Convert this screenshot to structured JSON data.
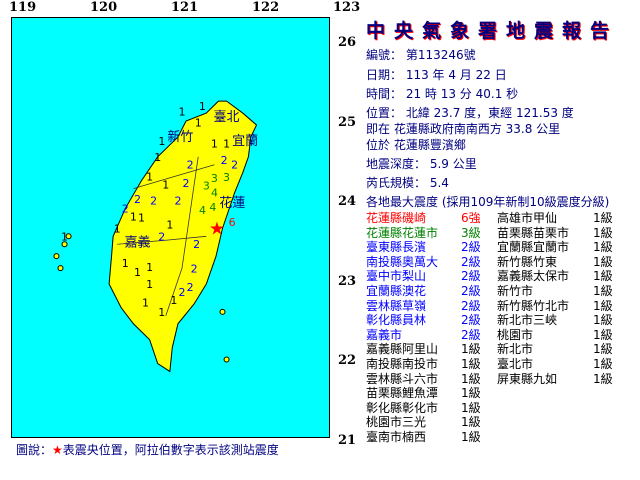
{
  "header": {
    "title": "中央氣象署地震報告"
  },
  "report": {
    "number": "編號： 第113246號",
    "date": "日期： 113 年 4 月 22 日",
    "time": "時間： 21 時 13 分 40.1 秒",
    "location": "位置： 北緯 23.7 度，東經 121.53 度",
    "relative": "即在 花蓮縣政府南南西方 33.8 公里",
    "region": "位於 花蓮縣豐濱鄉",
    "depth": "地震深度： 5.9 公里",
    "magnitude": "芮氏規模： 5.4",
    "intensity_header": "各地最大震度 (採用109年新制10級震度分級)"
  },
  "colors": {
    "sea": "#00ffff",
    "land": "#ffff00",
    "epicenter": "#ff0000",
    "title": "#000080",
    "grade6": "#ff0000",
    "grade3": "#008000",
    "grade2": "#0000ff",
    "grade1": "#000000"
  },
  "intensity_list": [
    {
      "place": "花蓮縣磯崎",
      "grade": "6強",
      "color": "#ff0000"
    },
    {
      "place": "花蓮縣花蓮市",
      "grade": "3級",
      "color": "#008000"
    },
    {
      "place": "臺東縣長濱",
      "grade": "2級",
      "color": "#0000ff"
    },
    {
      "place": "南投縣奧萬大",
      "grade": "2級",
      "color": "#0000ff"
    },
    {
      "place": "臺中市梨山",
      "grade": "2級",
      "color": "#0000ff"
    },
    {
      "place": "宜蘭縣澳花",
      "grade": "2級",
      "color": "#0000ff"
    },
    {
      "place": "雲林縣草嶺",
      "grade": "2級",
      "color": "#0000ff"
    },
    {
      "place": "彰化縣員林",
      "grade": "2級",
      "color": "#0000ff"
    },
    {
      "place": "嘉義市",
      "grade": "2級",
      "color": "#0000ff"
    },
    {
      "place": "嘉義縣阿里山",
      "grade": "1級",
      "color": "#000000"
    },
    {
      "place": "南投縣南投市",
      "grade": "1級",
      "color": "#000000"
    },
    {
      "place": "雲林縣斗六市",
      "grade": "1級",
      "color": "#000000"
    },
    {
      "place": "苗栗縣鯉魚潭",
      "grade": "1級",
      "color": "#000000"
    },
    {
      "place": "彰化縣彰化市",
      "grade": "1級",
      "color": "#000000"
    },
    {
      "place": "桃園市三光",
      "grade": "1級",
      "color": "#000000"
    },
    {
      "place": "臺南市楠西",
      "grade": "1級",
      "color": "#000000"
    },
    {
      "place": "高雄市甲仙",
      "grade": "1級",
      "color": "#000000"
    },
    {
      "place": "苗栗縣苗栗市",
      "grade": "1級",
      "color": "#000000"
    },
    {
      "place": "宜蘭縣宜蘭市",
      "grade": "1級",
      "color": "#000000"
    },
    {
      "place": "新竹縣竹東",
      "grade": "1級",
      "color": "#000000"
    },
    {
      "place": "嘉義縣太保市",
      "grade": "1級",
      "color": "#000000"
    },
    {
      "place": "新竹市",
      "grade": "1級",
      "color": "#000000"
    },
    {
      "place": "新竹縣竹北市",
      "grade": "1級",
      "color": "#000000"
    },
    {
      "place": "新北市三峽",
      "grade": "1級",
      "color": "#000000"
    },
    {
      "place": "桃園市",
      "grade": "1級",
      "color": "#000000"
    },
    {
      "place": "新北市",
      "grade": "1級",
      "color": "#000000"
    },
    {
      "place": "臺北市",
      "grade": "1級",
      "color": "#000000"
    },
    {
      "place": "屏東縣九如",
      "grade": "1級",
      "color": "#000000"
    }
  ],
  "map": {
    "lon_ticks": [
      "119",
      "120",
      "121",
      "122",
      "123"
    ],
    "lat_ticks": [
      "26",
      "25",
      "24",
      "23",
      "22",
      "21"
    ],
    "epicenter": {
      "lat": 23.7,
      "lon": 121.53
    },
    "city_labels": [
      {
        "text": "臺北",
        "lon": 121.55,
        "lat": 25.05
      },
      {
        "text": "新竹",
        "lon": 120.98,
        "lat": 24.8
      },
      {
        "text": "宜蘭",
        "lon": 121.78,
        "lat": 24.75
      },
      {
        "text": "花蓮",
        "lon": 121.62,
        "lat": 23.97
      },
      {
        "text": "嘉義",
        "lon": 120.45,
        "lat": 23.47
      }
    ],
    "stations": [
      {
        "v": "6",
        "lon": 121.52,
        "lat": 23.73,
        "c": "#ff0000"
      },
      {
        "v": "4",
        "lon": 121.48,
        "lat": 23.78,
        "c": "#008000"
      },
      {
        "v": "4",
        "lon": 121.45,
        "lat": 23.88,
        "c": "#008000"
      },
      {
        "v": "4",
        "lon": 121.5,
        "lat": 23.96,
        "c": "#008000"
      },
      {
        "v": "3",
        "lon": 121.4,
        "lat": 24.05,
        "c": "#008000"
      },
      {
        "v": "3",
        "lon": 121.4,
        "lat": 24.28,
        "c": "#008000"
      },
      {
        "v": "3",
        "lon": 121.55,
        "lat": 24.02,
        "c": "#008000"
      },
      {
        "v": "2",
        "lon": 121.52,
        "lat": 24.23,
        "c": "#0000ff"
      },
      {
        "v": "2",
        "lon": 121.65,
        "lat": 24.45,
        "c": "#0000ff"
      },
      {
        "v": "2",
        "lon": 121.1,
        "lat": 24.45,
        "c": "#0000ff"
      },
      {
        "v": "2",
        "lon": 121.05,
        "lat": 24.22,
        "c": "#0000ff"
      },
      {
        "v": "2",
        "lon": 120.95,
        "lat": 24.0,
        "c": "#0000ff"
      },
      {
        "v": "2",
        "lon": 120.65,
        "lat": 24.0,
        "c": "#0000ff"
      },
      {
        "v": "2",
        "lon": 120.45,
        "lat": 24.02,
        "c": "#0000ff"
      },
      {
        "v": "2",
        "lon": 120.75,
        "lat": 23.55,
        "c": "#0000ff"
      },
      {
        "v": "2",
        "lon": 121.18,
        "lat": 23.45,
        "c": "#0000ff"
      },
      {
        "v": "2",
        "lon": 121.15,
        "lat": 23.28,
        "c": "#0000ff"
      },
      {
        "v": "2",
        "lon": 120.3,
        "lat": 23.9,
        "c": "#0000ff"
      },
      {
        "v": "1",
        "lon": 121.2,
        "lat": 24.98,
        "c": "#000000"
      },
      {
        "v": "1",
        "lon": 121.35,
        "lat": 25.05,
        "c": "#000000"
      },
      {
        "v": "1",
        "lon": 121.0,
        "lat": 24.98,
        "c": "#000000"
      },
      {
        "v": "1",
        "lon": 120.85,
        "lat": 24.75,
        "c": "#000000"
      },
      {
        "v": "1",
        "lon": 120.7,
        "lat": 24.55,
        "c": "#000000"
      },
      {
        "v": "1",
        "lon": 121.4,
        "lat": 24.72,
        "c": "#000000"
      },
      {
        "v": "1",
        "lon": 121.65,
        "lat": 24.72,
        "c": "#000000"
      },
      {
        "v": "1",
        "lon": 120.6,
        "lat": 24.3,
        "c": "#000000"
      },
      {
        "v": "1",
        "lon": 120.8,
        "lat": 24.2,
        "c": "#000000"
      },
      {
        "v": "1",
        "lon": 120.4,
        "lat": 23.8,
        "c": "#000000"
      },
      {
        "v": "1",
        "lon": 120.3,
        "lat": 23.65,
        "c": "#000000"
      },
      {
        "v": "1",
        "lon": 120.5,
        "lat": 23.65,
        "c": "#000000"
      },
      {
        "v": "1",
        "lon": 120.85,
        "lat": 23.7,
        "c": "#000000"
      },
      {
        "v": "1",
        "lon": 120.3,
        "lat": 23.35,
        "c": "#000000"
      },
      {
        "v": "1",
        "lon": 120.6,
        "lat": 23.3,
        "c": "#000000"
      },
      {
        "v": "1",
        "lon": 120.45,
        "lat": 23.1,
        "c": "#000000"
      },
      {
        "v": "1",
        "lon": 120.6,
        "lat": 22.95,
        "c": "#000000"
      },
      {
        "v": "1",
        "lon": 120.55,
        "lat": 22.72,
        "c": "#000000"
      },
      {
        "v": "1",
        "lon": 120.75,
        "lat": 22.6,
        "c": "#000000"
      },
      {
        "v": "1",
        "lon": 120.9,
        "lat": 22.75,
        "c": "#000000"
      },
      {
        "v": "1",
        "lon": 119.55,
        "lat": 23.55,
        "c": "#000000"
      },
      {
        "v": "2",
        "lon": 121.0,
        "lat": 22.85,
        "c": "#0000ff"
      },
      {
        "v": "2",
        "lon": 121.1,
        "lat": 23.05,
        "c": "#0000ff"
      }
    ]
  },
  "legend": {
    "prefix": "圖說：",
    "star": "★",
    "text": "表震央位置，阿拉伯數字表示該測站震度"
  }
}
